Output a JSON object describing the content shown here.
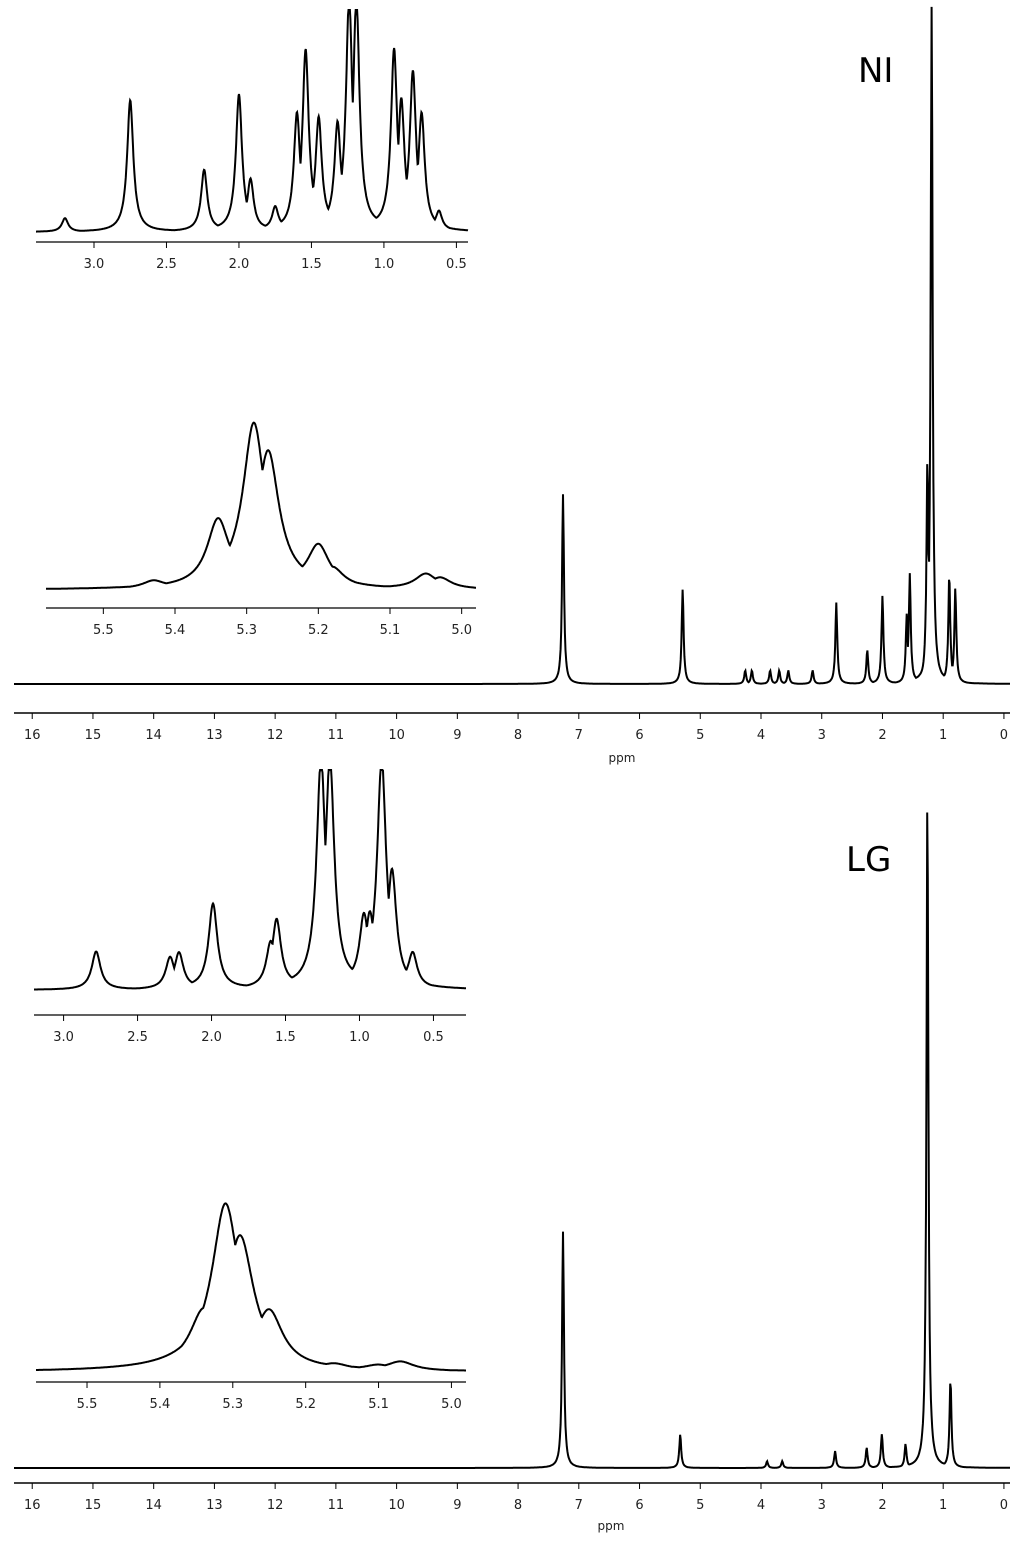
{
  "chart_data": [
    {
      "type": "line",
      "panel_label": "NI",
      "xlabel": "ppm",
      "xlim": [
        16.3,
        -0.1
      ],
      "x_ticks": [
        "16",
        "15",
        "14",
        "13",
        "12",
        "11",
        "10",
        "9",
        "8",
        "7",
        "6",
        "5",
        "4",
        "3",
        "2",
        "1",
        "0"
      ],
      "peaks": [
        {
          "ppm": 7.26,
          "height": 0.28
        },
        {
          "ppm": 5.29,
          "height": 0.14
        },
        {
          "ppm": 4.26,
          "height": 0.02
        },
        {
          "ppm": 4.15,
          "height": 0.02
        },
        {
          "ppm": 3.85,
          "height": 0.02
        },
        {
          "ppm": 3.7,
          "height": 0.02
        },
        {
          "ppm": 3.55,
          "height": 0.02
        },
        {
          "ppm": 3.15,
          "height": 0.02
        },
        {
          "ppm": 2.76,
          "height": 0.12
        },
        {
          "ppm": 2.25,
          "height": 0.05
        },
        {
          "ppm": 2.0,
          "height": 0.13
        },
        {
          "ppm": 1.6,
          "height": 0.1
        },
        {
          "ppm": 1.55,
          "height": 0.16
        },
        {
          "ppm": 1.26,
          "height": 0.32
        },
        {
          "ppm": 1.19,
          "height": 1.0
        },
        {
          "ppm": 0.9,
          "height": 0.16
        },
        {
          "ppm": 0.8,
          "height": 0.14
        }
      ],
      "insets": [
        {
          "xlim": [
            3.4,
            0.42
          ],
          "x_ticks": [
            "3.0",
            "2.5",
            "2.0",
            "1.5",
            "1.0",
            "0.5"
          ],
          "peaks": [
            {
              "ppm": 3.2,
              "height": 0.06
            },
            {
              "ppm": 2.75,
              "height": 0.58
            },
            {
              "ppm": 2.24,
              "height": 0.27
            },
            {
              "ppm": 2.0,
              "height": 0.6
            },
            {
              "ppm": 1.92,
              "height": 0.22
            },
            {
              "ppm": 1.75,
              "height": 0.1
            },
            {
              "ppm": 1.6,
              "height": 0.5
            },
            {
              "ppm": 1.54,
              "height": 0.78
            },
            {
              "ppm": 1.45,
              "height": 0.48
            },
            {
              "ppm": 1.32,
              "height": 0.45
            },
            {
              "ppm": 1.24,
              "height": 1.0
            },
            {
              "ppm": 1.19,
              "height": 1.0
            },
            {
              "ppm": 0.93,
              "height": 0.78
            },
            {
              "ppm": 0.88,
              "height": 0.55
            },
            {
              "ppm": 0.8,
              "height": 0.68
            },
            {
              "ppm": 0.74,
              "height": 0.5
            },
            {
              "ppm": 0.62,
              "height": 0.08
            }
          ]
        },
        {
          "xlim": [
            5.58,
            4.98
          ],
          "x_ticks": [
            "5.5",
            "5.4",
            "5.3",
            "5.2",
            "5.1",
            "5.0"
          ],
          "peaks": [
            {
              "ppm": 5.43,
              "height": 0.04
            },
            {
              "ppm": 5.34,
              "height": 0.35
            },
            {
              "ppm": 5.29,
              "height": 0.85
            },
            {
              "ppm": 5.27,
              "height": 0.7
            },
            {
              "ppm": 5.2,
              "height": 0.22
            },
            {
              "ppm": 5.18,
              "height": 0.1
            },
            {
              "ppm": 5.05,
              "height": 0.08
            },
            {
              "ppm": 5.03,
              "height": 0.06
            }
          ]
        }
      ]
    },
    {
      "type": "line",
      "panel_label": "LG",
      "xlabel": "ppm",
      "xlim": [
        16.3,
        -0.1
      ],
      "x_ticks": [
        "16",
        "15",
        "14",
        "13",
        "12",
        "11",
        "10",
        "9",
        "8",
        "7",
        "6",
        "5",
        "4",
        "3",
        "2",
        "1",
        "0"
      ],
      "peaks": [
        {
          "ppm": 7.26,
          "height": 0.35
        },
        {
          "ppm": 5.33,
          "height": 0.05
        },
        {
          "ppm": 3.9,
          "height": 0.01
        },
        {
          "ppm": 3.65,
          "height": 0.01
        },
        {
          "ppm": 2.78,
          "height": 0.025
        },
        {
          "ppm": 2.26,
          "height": 0.03
        },
        {
          "ppm": 2.01,
          "height": 0.05
        },
        {
          "ppm": 1.62,
          "height": 0.035
        },
        {
          "ppm": 1.26,
          "height": 1.0
        },
        {
          "ppm": 0.88,
          "height": 0.13
        }
      ],
      "insets": [
        {
          "xlim": [
            3.2,
            0.28
          ],
          "x_ticks": [
            "3.0",
            "2.5",
            "2.0",
            "1.5",
            "1.0",
            "0.5"
          ],
          "peaks": [
            {
              "ppm": 2.78,
              "height": 0.17
            },
            {
              "ppm": 2.28,
              "height": 0.14
            },
            {
              "ppm": 2.22,
              "height": 0.16
            },
            {
              "ppm": 1.99,
              "height": 0.38
            },
            {
              "ppm": 1.6,
              "height": 0.2
            },
            {
              "ppm": 1.56,
              "height": 0.3
            },
            {
              "ppm": 1.26,
              "height": 1.0
            },
            {
              "ppm": 1.2,
              "height": 1.0
            },
            {
              "ppm": 0.97,
              "height": 0.3
            },
            {
              "ppm": 0.93,
              "height": 0.3
            },
            {
              "ppm": 0.85,
              "height": 1.0
            },
            {
              "ppm": 0.78,
              "height": 0.5
            },
            {
              "ppm": 0.64,
              "height": 0.15
            }
          ]
        },
        {
          "xlim": [
            5.57,
            4.98
          ],
          "x_ticks": [
            "5.5",
            "5.4",
            "5.3",
            "5.2",
            "5.1",
            "5.0"
          ],
          "peaks": [
            {
              "ppm": 5.34,
              "height": 0.3
            },
            {
              "ppm": 5.31,
              "height": 0.88
            },
            {
              "ppm": 5.29,
              "height": 0.7
            },
            {
              "ppm": 5.25,
              "height": 0.3
            },
            {
              "ppm": 5.16,
              "height": 0.03
            },
            {
              "ppm": 5.1,
              "height": 0.03
            },
            {
              "ppm": 5.07,
              "height": 0.05
            }
          ]
        }
      ]
    }
  ]
}
